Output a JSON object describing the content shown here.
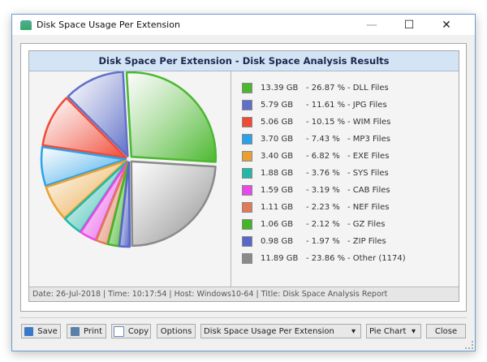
{
  "window": {
    "title": "Disk Space Usage Per Extension",
    "minimize": "—",
    "maximize": "☐",
    "close": "✕"
  },
  "chart_data": {
    "type": "pie",
    "title": "Disk Space Per Extension - Disk Space Analysis Results",
    "legend_position": "right",
    "slices": [
      {
        "size": "13.39 GB",
        "percent": 26.87,
        "percent_label": "26.87 %",
        "label": "DLL Files",
        "color": "#4cb830"
      },
      {
        "size": "5.79 GB",
        "percent": 11.61,
        "percent_label": "11.61 %",
        "label": "JPG Files",
        "color": "#6070c8"
      },
      {
        "size": "5.06 GB",
        "percent": 10.15,
        "percent_label": "10.15 %",
        "label": "WIM Files",
        "color": "#f04a35"
      },
      {
        "size": "3.70 GB",
        "percent": 7.43,
        "percent_label": "7.43 %",
        "label": "MP3 Files",
        "color": "#2aa2ea"
      },
      {
        "size": "3.40 GB",
        "percent": 6.82,
        "percent_label": "6.82 %",
        "label": "EXE Files",
        "color": "#eaa030"
      },
      {
        "size": "1.88 GB",
        "percent": 3.76,
        "percent_label": "3.76 %",
        "label": "SYS Files",
        "color": "#22b8a8"
      },
      {
        "size": "1.59 GB",
        "percent": 3.19,
        "percent_label": "3.19 %",
        "label": "CAB Files",
        "color": "#e848e8"
      },
      {
        "size": "1.11 GB",
        "percent": 2.23,
        "percent_label": "2.23 %",
        "label": "NEF Files",
        "color": "#e07a58"
      },
      {
        "size": "1.06 GB",
        "percent": 2.12,
        "percent_label": "2.12 %",
        "label": "GZ Files",
        "color": "#44b428"
      },
      {
        "size": "0.98 GB",
        "percent": 1.97,
        "percent_label": "1.97 %",
        "label": "ZIP Files",
        "color": "#5868c8"
      },
      {
        "size": "11.89 GB",
        "percent": 23.86,
        "percent_label": "23.86 %",
        "label": "Other (1174)",
        "color": "#8a8a8a"
      }
    ]
  },
  "footer": "Date: 26-Jul-2018 | Time: 10:17:54 | Host: Windows10-64 | Title: Disk Space Analysis Report",
  "toolbar": {
    "save": "Save",
    "print": "Print",
    "copy": "Copy",
    "options": "Options",
    "report_select": "Disk Space Usage Per Extension",
    "chart_type_select": "Pie Chart",
    "close": "Close",
    "dropdown_arrow": "▾"
  }
}
